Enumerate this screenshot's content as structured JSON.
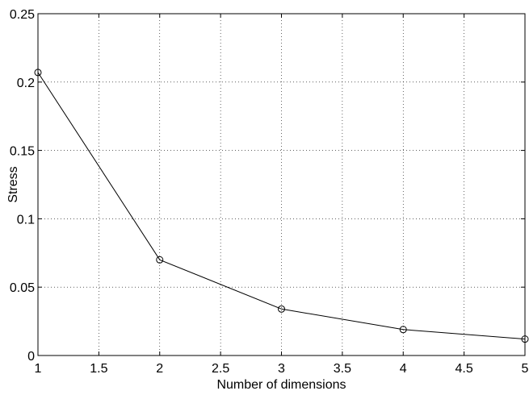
{
  "chart_data": {
    "type": "line",
    "title": "",
    "xlabel": "Number of dimensions",
    "ylabel": "Stress",
    "xlim": [
      1,
      5
    ],
    "ylim": [
      0,
      0.25
    ],
    "x_ticks": [
      1,
      1.5,
      2,
      2.5,
      3,
      3.5,
      4,
      4.5,
      5
    ],
    "x_tick_labels": [
      "1",
      "1.5",
      "2",
      "2.5",
      "3",
      "3.5",
      "4",
      "4.5",
      "5"
    ],
    "y_ticks": [
      0,
      0.05,
      0.1,
      0.15,
      0.2,
      0.25
    ],
    "y_tick_labels": [
      "0",
      "0.05",
      "0.1",
      "0.15",
      "0.2",
      "0.25"
    ],
    "grid": true,
    "marker": "circle",
    "line_color": "#000000",
    "series": [
      {
        "x": [
          1,
          2,
          3,
          4,
          5
        ],
        "y": [
          0.207,
          0.07,
          0.034,
          0.019,
          0.012
        ]
      }
    ]
  }
}
